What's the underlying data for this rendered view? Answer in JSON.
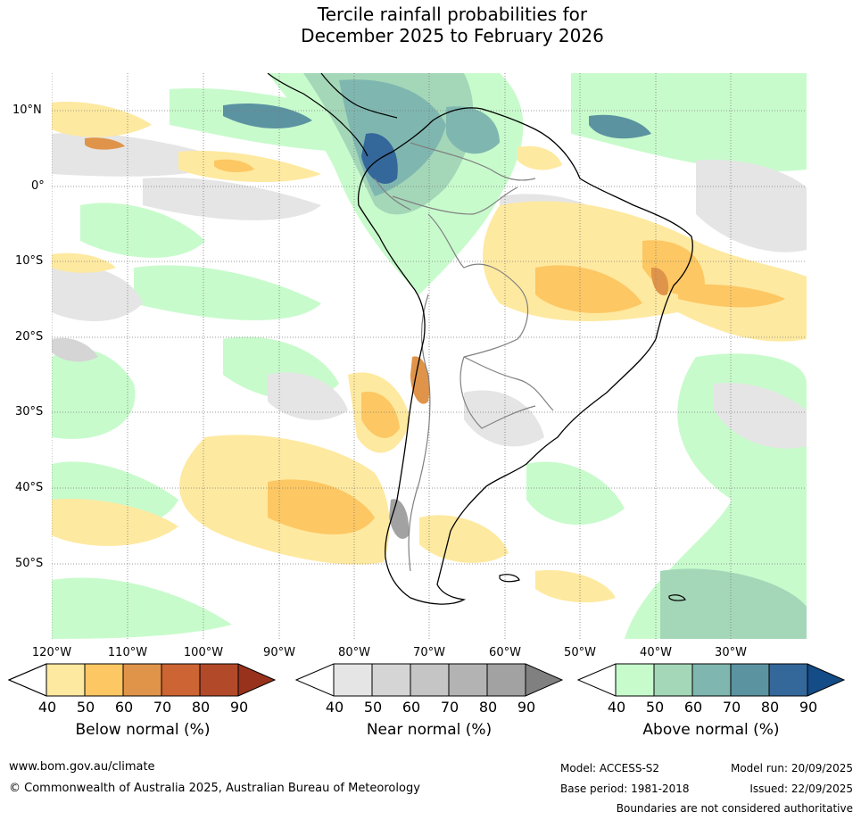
{
  "title": {
    "line1": "Tercile rainfall probabilities for",
    "line2": "December 2025 to February 2026"
  },
  "map": {
    "lat_labels": [
      "10°N",
      "0°",
      "10°S",
      "20°S",
      "30°S",
      "40°S",
      "50°S"
    ],
    "lon_labels": [
      "120°W",
      "110°W",
      "100°W",
      "90°W",
      "80°W",
      "70°W",
      "60°W",
      "50°W",
      "40°W",
      "30°W"
    ],
    "background_color": "#ffffff",
    "grid_color": "#7a7a7a",
    "coast_color": "#000000",
    "border_color": "#808080"
  },
  "colorbars": [
    {
      "title": "Below normal (%)",
      "ticks": [
        "40",
        "50",
        "60",
        "70",
        "80",
        "90"
      ],
      "colors": [
        "#fee9a0",
        "#fdc763",
        "#e0944a",
        "#cc6433",
        "#b24a2a"
      ],
      "over_color": "#98321c"
    },
    {
      "title": "Near normal (%)",
      "ticks": [
        "40",
        "50",
        "60",
        "70",
        "80",
        "90"
      ],
      "colors": [
        "#e5e5e5",
        "#d5d5d5",
        "#c5c5c5",
        "#b3b3b3",
        "#a2a2a2"
      ],
      "over_color": "#808080"
    },
    {
      "title": "Above normal (%)",
      "ticks": [
        "40",
        "50",
        "60",
        "70",
        "80",
        "90"
      ],
      "colors": [
        "#c8fbcc",
        "#a4d7b8",
        "#7fb7b0",
        "#5c93a1",
        "#34679a"
      ],
      "over_color": "#134c86"
    }
  ],
  "footer": {
    "website": "www.bom.gov.au/climate",
    "copyright": "© Commonwealth of Australia 2025, Australian Bureau of Meteorology",
    "model": "Model: ACCESS-S2",
    "base_period": "Base period: 1981-2018",
    "model_run": "Model run: 20/09/2025",
    "issued": "Issued: 22/09/2025",
    "disclaimer": "Boundaries are not considered authoritative"
  }
}
